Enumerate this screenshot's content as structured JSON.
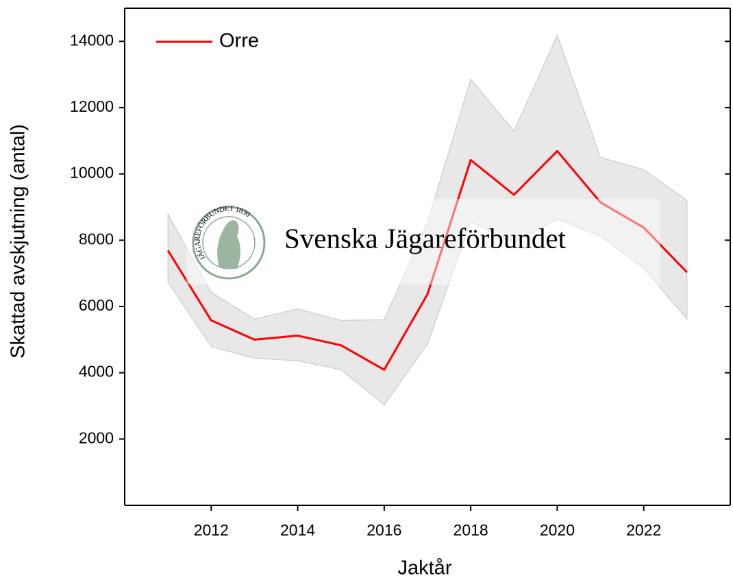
{
  "chart_data": {
    "type": "line",
    "x_label": "Jaktår",
    "y_label": "Skattad avskjutning (antal)",
    "x": [
      2011,
      2012,
      2013,
      2014,
      2015,
      2016,
      2017,
      2018,
      2019,
      2020,
      2021,
      2022,
      2023
    ],
    "series": [
      {
        "name": "Orre",
        "color": "#ff0000",
        "values": [
          7690,
          5580,
          5000,
          5120,
          4830,
          4090,
          6370,
          10420,
          9370,
          10690,
          9140,
          8380,
          7030
        ]
      }
    ],
    "band": {
      "color": "#e8e8e8",
      "upper": [
        8790,
        6430,
        5620,
        5930,
        5580,
        5600,
        8540,
        12860,
        11290,
        14190,
        10500,
        10130,
        9200
      ],
      "lower": [
        6740,
        4790,
        4440,
        4360,
        4090,
        3030,
        4860,
        8560,
        7920,
        8640,
        8120,
        7150,
        5620
      ]
    },
    "xlim": [
      2010,
      2024
    ],
    "ylim": [
      0,
      15000
    ],
    "xticks": [
      2012,
      2014,
      2016,
      2018,
      2020,
      2022
    ],
    "yticks": [
      2000,
      4000,
      6000,
      8000,
      10000,
      12000,
      14000
    ],
    "legend": "upper left",
    "watermark": {
      "text": "Svenska Jägareförbundet",
      "seal_text": "JÄGAREFÖRBUNDET 1830"
    }
  }
}
